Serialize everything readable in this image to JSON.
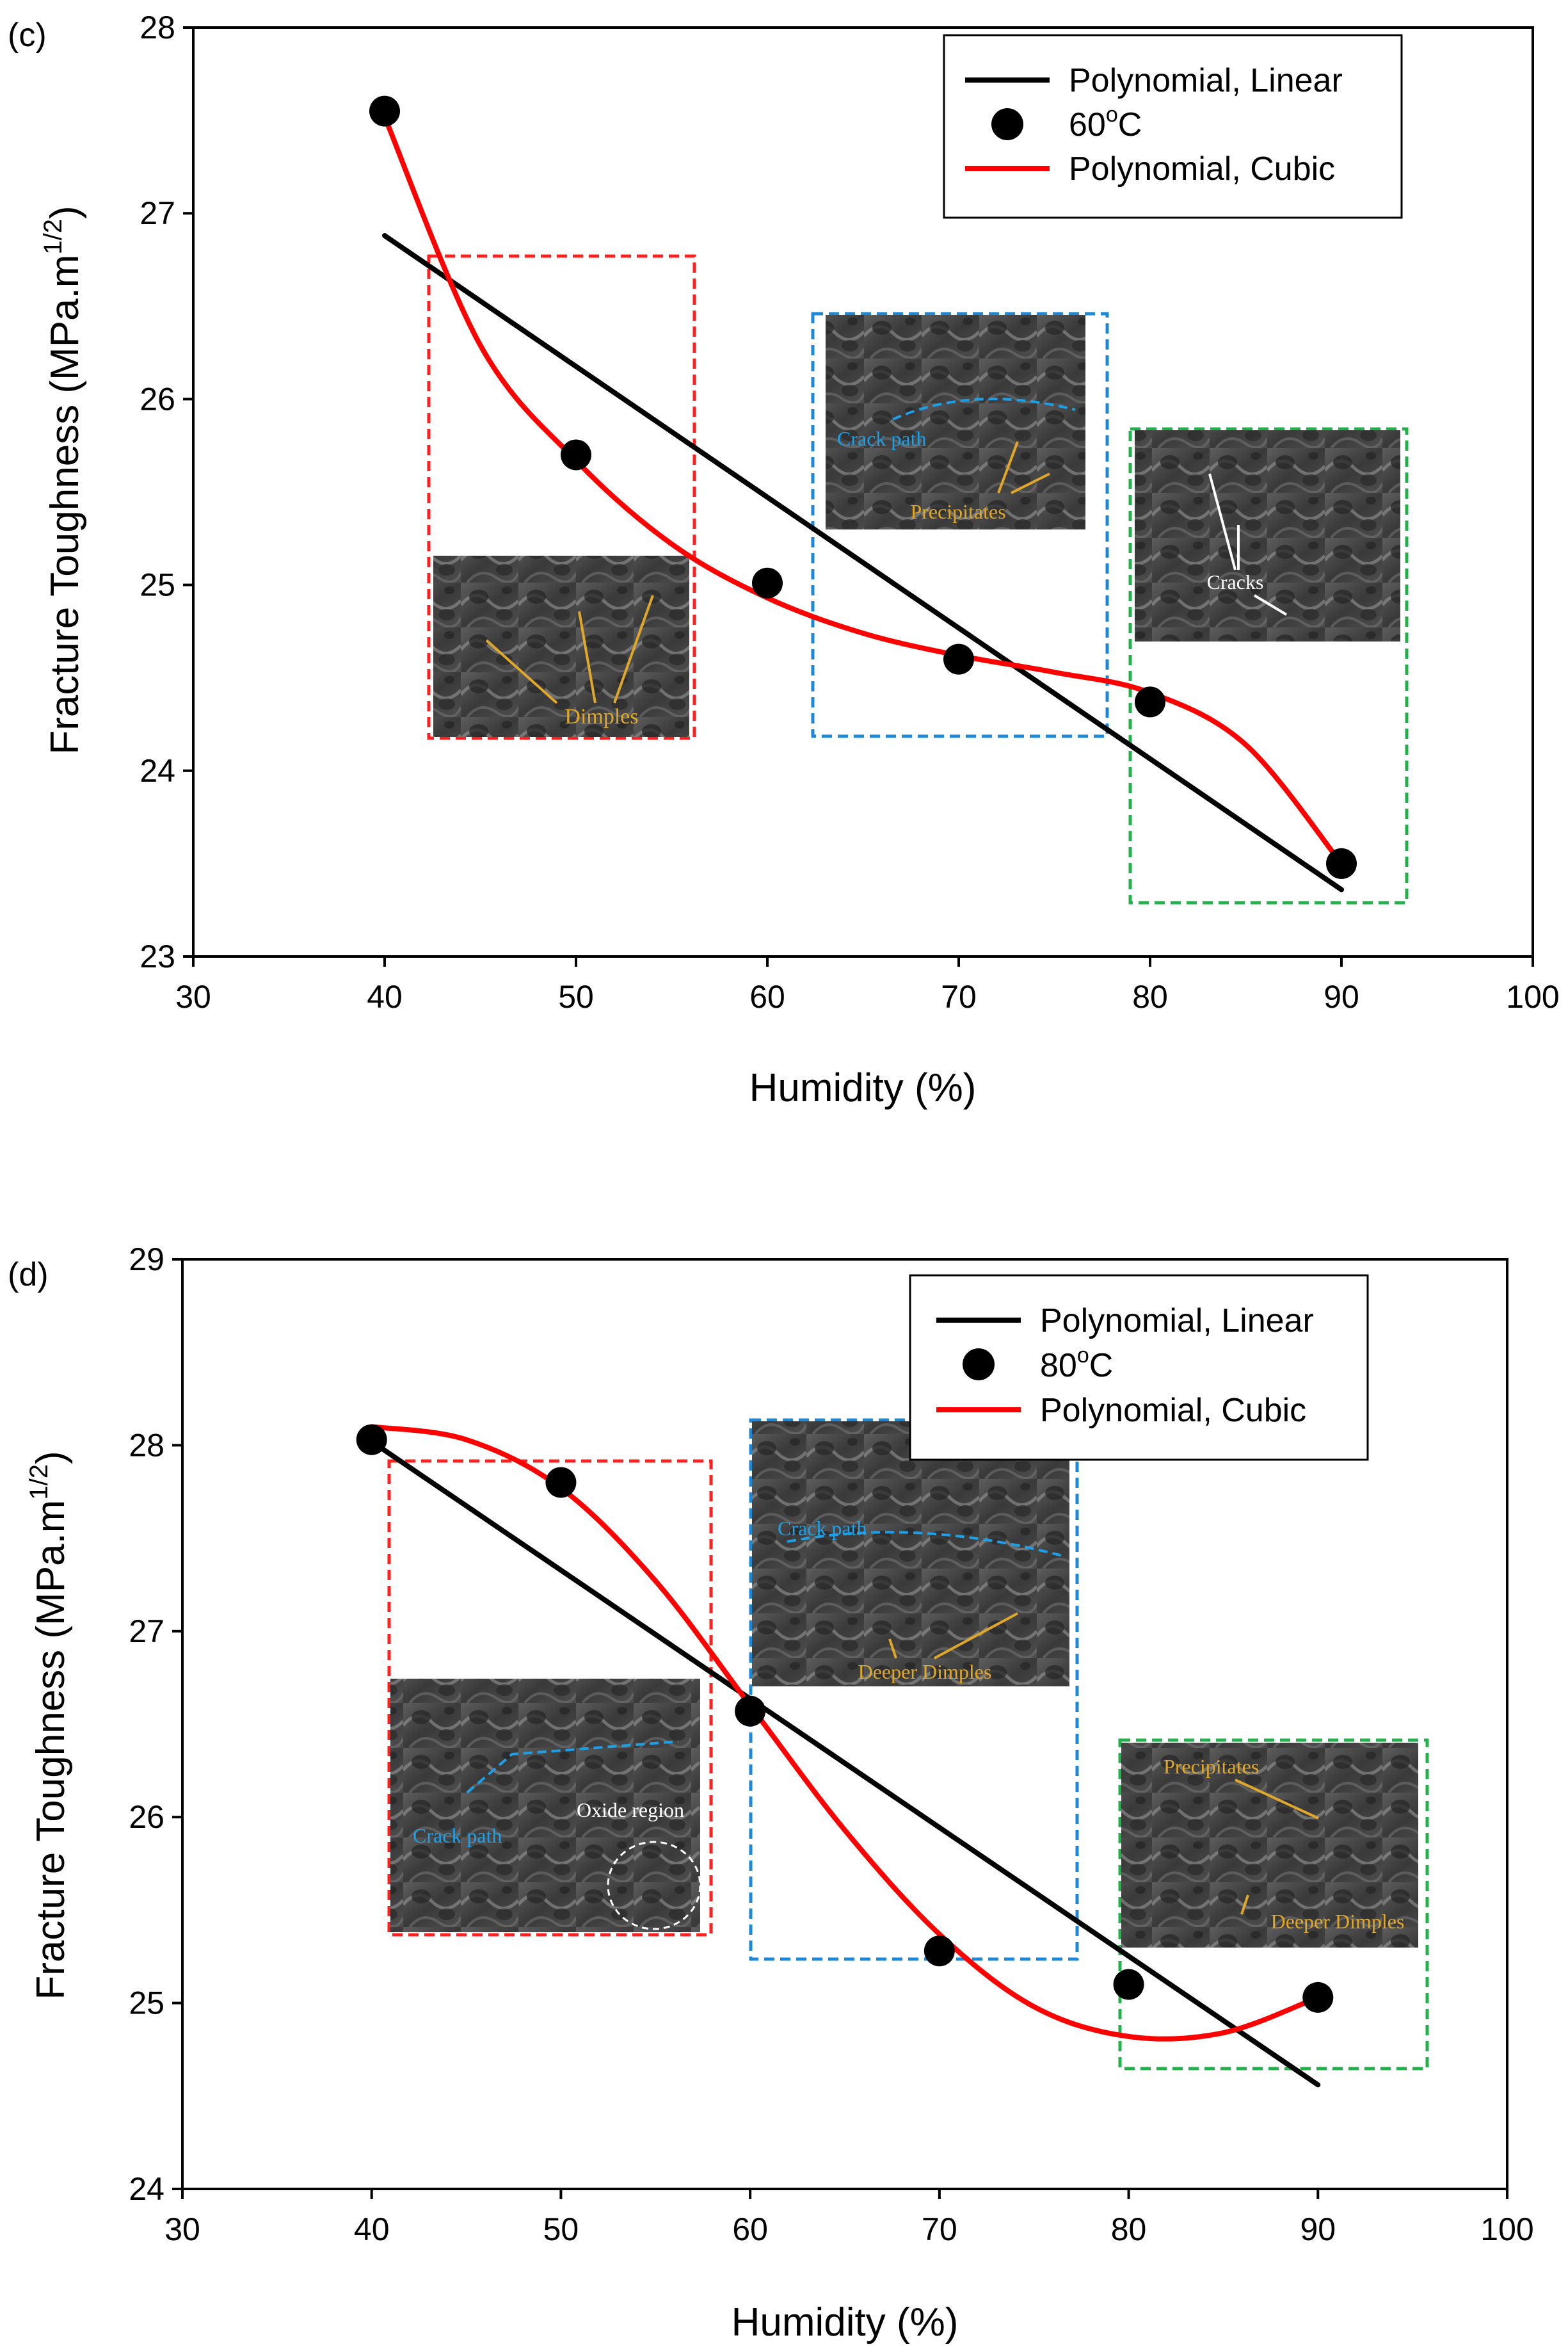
{
  "chart_data": [
    {
      "type": "scatter",
      "panel_label": "(c)",
      "xlabel": "Humidity (%)",
      "ylabel": "Fracture Toughness (MPa.m",
      "ylabel_exp": "1/2",
      "ylabel_close": ")",
      "xlim": [
        30,
        100
      ],
      "ylim": [
        23,
        28
      ],
      "xticks": [
        30,
        40,
        50,
        60,
        70,
        80,
        90,
        100
      ],
      "yticks": [
        23,
        24,
        25,
        26,
        27,
        28
      ],
      "series": [
        {
          "name": "Polynomial, Linear",
          "kind": "line",
          "color": "#000000",
          "x": [
            40,
            90
          ],
          "y": [
            26.88,
            23.36
          ]
        },
        {
          "name": "60",
          "name_sup": "o",
          "name_suffix": "C",
          "kind": "scatter",
          "color": "#000000",
          "x": [
            40,
            50,
            60,
            70,
            80,
            90
          ],
          "y": [
            27.55,
            25.7,
            25.01,
            24.6,
            24.37,
            23.5
          ]
        },
        {
          "name": "Polynomial, Cubic",
          "kind": "line",
          "color": "#ff0000",
          "x": [
            40,
            45,
            50,
            55,
            60,
            65,
            70,
            75,
            80,
            85,
            90
          ],
          "y": [
            27.52,
            26.29,
            25.67,
            25.22,
            24.93,
            24.74,
            24.62,
            24.53,
            24.42,
            24.14,
            23.5
          ]
        }
      ],
      "legend": "top-right",
      "insets": [
        {
          "box_color": "#ff2020",
          "labels": [
            "Dimples"
          ]
        },
        {
          "box_color": "#1e88d8",
          "labels": [
            "Crack path",
            "Precipitates"
          ]
        },
        {
          "box_color": "#22b04a",
          "labels": [
            "Cracks"
          ]
        }
      ]
    },
    {
      "type": "scatter",
      "panel_label": "(d)",
      "xlabel": "Humidity (%)",
      "ylabel": "Fracture Toughness (MPa.m",
      "ylabel_exp": "1/2",
      "ylabel_close": ")",
      "xlim": [
        30,
        100
      ],
      "ylim": [
        24,
        29
      ],
      "xticks": [
        30,
        40,
        50,
        60,
        70,
        80,
        90,
        100
      ],
      "yticks": [
        24,
        25,
        26,
        27,
        28,
        29
      ],
      "series": [
        {
          "name": "Polynomial, Linear",
          "kind": "line",
          "color": "#000000",
          "x": [
            40,
            90
          ],
          "y": [
            28.02,
            24.56
          ]
        },
        {
          "name": "80",
          "name_sup": "o",
          "name_suffix": "C",
          "kind": "scatter",
          "color": "#000000",
          "x": [
            40,
            50,
            60,
            70,
            80,
            90
          ],
          "y": [
            28.03,
            27.8,
            26.57,
            25.28,
            25.1,
            25.03
          ]
        },
        {
          "name": "Polynomial, Cubic",
          "kind": "line",
          "color": "#ff0000",
          "x": [
            40,
            45,
            50,
            55,
            60,
            65,
            70,
            75,
            80,
            85,
            90
          ],
          "y": [
            28.1,
            28.03,
            27.77,
            27.27,
            26.6,
            25.93,
            25.37,
            24.98,
            24.82,
            24.84,
            25.03
          ]
        }
      ],
      "legend": "top-right",
      "insets": [
        {
          "box_color": "#ff2020",
          "labels": [
            "Crack path",
            "Oxide region"
          ]
        },
        {
          "box_color": "#1e88d8",
          "labels": [
            "Crack path",
            "Deeper Dimples"
          ]
        },
        {
          "box_color": "#22b04a",
          "labels": [
            "Precipitates",
            "Deeper Dimples"
          ]
        }
      ]
    }
  ]
}
